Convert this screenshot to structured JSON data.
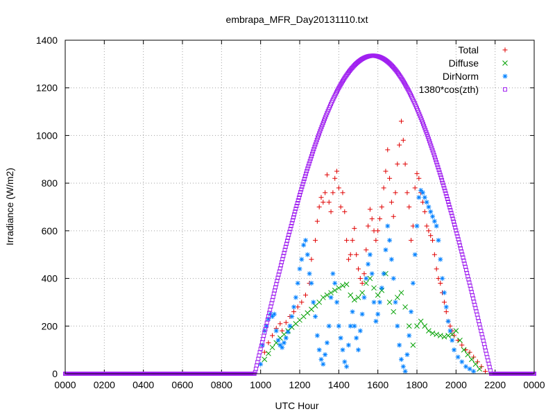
{
  "chart_data": {
    "type": "scatter",
    "title": "embrapa_MFR_Day20131110.txt",
    "xlabel": "UTC Hour",
    "ylabel": "Irradiance (W/m2)",
    "xlim": [
      0,
      24
    ],
    "ylim": [
      0,
      1400
    ],
    "x_ticks": [
      0,
      2,
      4,
      6,
      8,
      10,
      12,
      14,
      16,
      18,
      20,
      22,
      24
    ],
    "x_tick_labels": [
      "0000",
      "0200",
      "0400",
      "0600",
      "0800",
      "1000",
      "1200",
      "1400",
      "1600",
      "1800",
      "2000",
      "2200",
      "0000"
    ],
    "y_ticks": [
      0,
      200,
      400,
      600,
      800,
      1000,
      1200,
      1400
    ],
    "y_tick_labels": [
      "0",
      "200",
      "400",
      "600",
      "800",
      "1000",
      "1200",
      "1400"
    ],
    "grid": true,
    "legend_position": "top-right",
    "series": [
      {
        "name": "Total",
        "color": "#e00000",
        "marker": "+",
        "points": [
          [
            10.2,
            90
          ],
          [
            10.4,
            130
          ],
          [
            10.6,
            160
          ],
          [
            10.8,
            190
          ],
          [
            11.0,
            210
          ],
          [
            11.1,
            180
          ],
          [
            11.3,
            215
          ],
          [
            11.5,
            240
          ],
          [
            11.7,
            260
          ],
          [
            11.9,
            280
          ],
          [
            12.1,
            300
          ],
          [
            12.3,
            330
          ],
          [
            12.5,
            380
          ],
          [
            12.6,
            480
          ],
          [
            12.8,
            560
          ],
          [
            12.9,
            640
          ],
          [
            13.0,
            700
          ],
          [
            13.1,
            740
          ],
          [
            13.2,
            720
          ],
          [
            13.3,
            760
          ],
          [
            13.4,
            835
          ],
          [
            13.5,
            720
          ],
          [
            13.6,
            680
          ],
          [
            13.7,
            760
          ],
          [
            13.8,
            820
          ],
          [
            13.9,
            850
          ],
          [
            14.0,
            780
          ],
          [
            14.1,
            700
          ],
          [
            14.2,
            760
          ],
          [
            14.3,
            680
          ],
          [
            14.4,
            560
          ],
          [
            14.5,
            480
          ],
          [
            14.6,
            500
          ],
          [
            14.7,
            560
          ],
          [
            14.8,
            610
          ],
          [
            14.9,
            500
          ],
          [
            15.0,
            440
          ],
          [
            15.1,
            400
          ],
          [
            15.2,
            380
          ],
          [
            15.3,
            420
          ],
          [
            15.4,
            520
          ],
          [
            15.5,
            620
          ],
          [
            15.6,
            690
          ],
          [
            15.7,
            650
          ],
          [
            15.8,
            600
          ],
          [
            15.9,
            560
          ],
          [
            16.0,
            600
          ],
          [
            16.1,
            650
          ],
          [
            16.2,
            700
          ],
          [
            16.3,
            780
          ],
          [
            16.4,
            850
          ],
          [
            16.5,
            940
          ],
          [
            16.6,
            820
          ],
          [
            16.7,
            720
          ],
          [
            16.8,
            660
          ],
          [
            16.9,
            760
          ],
          [
            17.0,
            880
          ],
          [
            17.1,
            960
          ],
          [
            17.2,
            1060
          ],
          [
            17.3,
            980
          ],
          [
            17.4,
            880
          ],
          [
            17.5,
            760
          ],
          [
            17.6,
            700
          ],
          [
            17.7,
            560
          ],
          [
            17.8,
            620
          ],
          [
            17.9,
            780
          ],
          [
            18.0,
            840
          ],
          [
            18.1,
            820
          ],
          [
            18.2,
            760
          ],
          [
            18.3,
            720
          ],
          [
            18.4,
            680
          ],
          [
            18.5,
            620
          ],
          [
            18.6,
            600
          ],
          [
            18.7,
            580
          ],
          [
            18.8,
            560
          ],
          [
            18.9,
            500
          ],
          [
            19.0,
            440
          ],
          [
            19.1,
            400
          ],
          [
            19.2,
            380
          ],
          [
            19.3,
            340
          ],
          [
            19.4,
            300
          ],
          [
            19.5,
            260
          ],
          [
            19.6,
            220
          ],
          [
            19.7,
            200
          ],
          [
            19.8,
            180
          ],
          [
            19.9,
            160
          ],
          [
            20.1,
            140
          ],
          [
            20.3,
            120
          ],
          [
            20.5,
            100
          ],
          [
            20.7,
            90
          ],
          [
            20.9,
            70
          ],
          [
            21.1,
            50
          ],
          [
            21.3,
            30
          ],
          [
            21.5,
            10
          ]
        ]
      },
      {
        "name": "Diffuse",
        "color": "#00a000",
        "marker": "x",
        "points": [
          [
            10.2,
            60
          ],
          [
            10.4,
            85
          ],
          [
            10.6,
            110
          ],
          [
            10.8,
            130
          ],
          [
            11.0,
            150
          ],
          [
            11.2,
            165
          ],
          [
            11.4,
            180
          ],
          [
            11.6,
            195
          ],
          [
            11.8,
            210
          ],
          [
            12.0,
            225
          ],
          [
            12.2,
            240
          ],
          [
            12.4,
            255
          ],
          [
            12.6,
            270
          ],
          [
            12.8,
            285
          ],
          [
            13.0,
            300
          ],
          [
            13.2,
            320
          ],
          [
            13.4,
            330
          ],
          [
            13.6,
            340
          ],
          [
            13.8,
            350
          ],
          [
            14.0,
            360
          ],
          [
            14.2,
            370
          ],
          [
            14.4,
            375
          ],
          [
            14.6,
            330
          ],
          [
            14.8,
            310
          ],
          [
            15.0,
            320
          ],
          [
            15.2,
            340
          ],
          [
            15.4,
            380
          ],
          [
            15.6,
            400
          ],
          [
            15.8,
            360
          ],
          [
            16.0,
            330
          ],
          [
            16.2,
            350
          ],
          [
            16.4,
            420
          ],
          [
            16.6,
            300
          ],
          [
            16.8,
            260
          ],
          [
            17.0,
            320
          ],
          [
            17.2,
            340
          ],
          [
            17.4,
            280
          ],
          [
            17.6,
            200
          ],
          [
            17.8,
            120
          ],
          [
            18.0,
            200
          ],
          [
            18.2,
            220
          ],
          [
            18.4,
            200
          ],
          [
            18.6,
            180
          ],
          [
            18.8,
            170
          ],
          [
            19.0,
            165
          ],
          [
            19.2,
            160
          ],
          [
            19.4,
            155
          ],
          [
            19.6,
            160
          ],
          [
            19.8,
            165
          ],
          [
            20.0,
            180
          ],
          [
            20.2,
            140
          ],
          [
            20.4,
            100
          ],
          [
            20.6,
            80
          ],
          [
            20.8,
            60
          ],
          [
            21.0,
            40
          ],
          [
            21.2,
            20
          ]
        ]
      },
      {
        "name": "DirNorm",
        "color": "#0080ff",
        "marker": "*",
        "points": [
          [
            10.0,
            40
          ],
          [
            10.1,
            120
          ],
          [
            10.2,
            180
          ],
          [
            10.3,
            200
          ],
          [
            10.4,
            230
          ],
          [
            10.5,
            250
          ],
          [
            10.6,
            240
          ],
          [
            10.7,
            250
          ],
          [
            10.8,
            180
          ],
          [
            10.9,
            140
          ],
          [
            11.0,
            120
          ],
          [
            11.1,
            110
          ],
          [
            11.2,
            130
          ],
          [
            11.3,
            150
          ],
          [
            11.4,
            175
          ],
          [
            11.5,
            200
          ],
          [
            11.6,
            240
          ],
          [
            11.7,
            280
          ],
          [
            11.8,
            320
          ],
          [
            11.9,
            380
          ],
          [
            12.0,
            440
          ],
          [
            12.1,
            480
          ],
          [
            12.2,
            540
          ],
          [
            12.3,
            560
          ],
          [
            12.4,
            500
          ],
          [
            12.5,
            420
          ],
          [
            12.6,
            380
          ],
          [
            12.7,
            300
          ],
          [
            12.8,
            240
          ],
          [
            12.9,
            160
          ],
          [
            13.0,
            100
          ],
          [
            13.1,
            60
          ],
          [
            13.2,
            40
          ],
          [
            13.3,
            80
          ],
          [
            13.4,
            130
          ],
          [
            13.5,
            200
          ],
          [
            13.6,
            320
          ],
          [
            13.7,
            420
          ],
          [
            13.8,
            380
          ],
          [
            13.9,
            300
          ],
          [
            14.0,
            200
          ],
          [
            14.1,
            150
          ],
          [
            14.2,
            100
          ],
          [
            14.3,
            50
          ],
          [
            14.4,
            30
          ],
          [
            14.5,
            120
          ],
          [
            14.6,
            200
          ],
          [
            14.7,
            260
          ],
          [
            14.8,
            200
          ],
          [
            14.9,
            150
          ],
          [
            15.0,
            100
          ],
          [
            15.1,
            180
          ],
          [
            15.2,
            250
          ],
          [
            15.3,
            320
          ],
          [
            15.4,
            400
          ],
          [
            15.5,
            460
          ],
          [
            15.6,
            500
          ],
          [
            15.7,
            420
          ],
          [
            15.8,
            300
          ],
          [
            15.9,
            220
          ],
          [
            16.0,
            250
          ],
          [
            16.1,
            300
          ],
          [
            16.2,
            360
          ],
          [
            16.3,
            420
          ],
          [
            16.4,
            520
          ],
          [
            16.5,
            620
          ],
          [
            16.6,
            560
          ],
          [
            16.7,
            480
          ],
          [
            16.8,
            400
          ],
          [
            16.9,
            300
          ],
          [
            17.0,
            200
          ],
          [
            17.1,
            120
          ],
          [
            17.2,
            60
          ],
          [
            17.3,
            30
          ],
          [
            17.4,
            10
          ],
          [
            17.5,
            80
          ],
          [
            17.6,
            160
          ],
          [
            17.7,
            260
          ],
          [
            17.8,
            380
          ],
          [
            17.9,
            500
          ],
          [
            18.0,
            620
          ],
          [
            18.1,
            740
          ],
          [
            18.2,
            770
          ],
          [
            18.3,
            760
          ],
          [
            18.4,
            740
          ],
          [
            18.5,
            720
          ],
          [
            18.6,
            700
          ],
          [
            18.7,
            680
          ],
          [
            18.8,
            660
          ],
          [
            18.9,
            640
          ],
          [
            19.0,
            620
          ],
          [
            19.1,
            560
          ],
          [
            19.2,
            480
          ],
          [
            19.3,
            400
          ],
          [
            19.4,
            340
          ],
          [
            19.5,
            280
          ],
          [
            19.6,
            220
          ],
          [
            19.7,
            180
          ],
          [
            19.8,
            140
          ],
          [
            19.9,
            100
          ],
          [
            20.1,
            70
          ],
          [
            20.3,
            50
          ],
          [
            20.5,
            30
          ],
          [
            20.7,
            20
          ],
          [
            20.9,
            10
          ]
        ]
      },
      {
        "name": "1380*cos(zth)",
        "color": "#a020f0",
        "marker": "square",
        "curve": {
          "sunrise_hour": 9.7,
          "sunset_hour": 21.8,
          "peak_hour": 15.75,
          "peak_value": 1335
        }
      }
    ]
  }
}
